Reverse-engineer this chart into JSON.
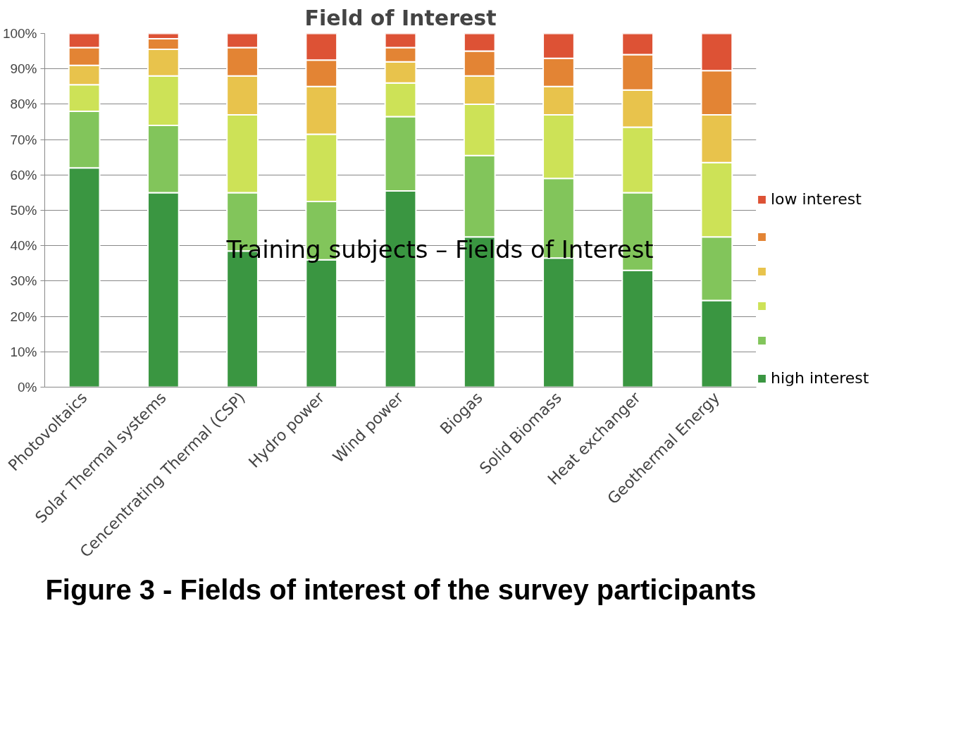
{
  "chart_data": {
    "type": "bar",
    "stacked": true,
    "title": "Field of Interest",
    "categories": [
      "Photovoltaics",
      "Solar Thermal systems",
      "Cencentrating Thermal (CSP)",
      "Hydro power",
      "Wind power",
      "Biogas",
      "Solid Biomass",
      "Heat exchanger",
      "Geothermal Energy"
    ],
    "series": [
      {
        "name": "high interest",
        "color": "#3a9641",
        "values": [
          62,
          55,
          38.5,
          36,
          55.5,
          42.5,
          36.5,
          33,
          24.5
        ]
      },
      {
        "color": "#82c55b",
        "values": [
          16,
          19,
          16.5,
          16.5,
          21,
          23,
          22.5,
          22,
          18
        ]
      },
      {
        "color": "#cde257",
        "values": [
          7.5,
          14,
          22,
          19,
          9.5,
          14.5,
          18,
          18.5,
          21
        ]
      },
      {
        "color": "#e8c34c",
        "values": [
          5.5,
          7.5,
          11,
          13.5,
          6,
          8,
          8,
          10.5,
          13.5
        ]
      },
      {
        "color": "#e38434",
        "values": [
          5,
          3,
          8,
          7.5,
          4,
          7,
          8,
          10,
          12.5
        ]
      },
      {
        "name": "low interest",
        "color": "#dd5235",
        "values": [
          4,
          1.5,
          4,
          7.5,
          4,
          5,
          7,
          6,
          10.5
        ]
      }
    ],
    "ylim": [
      0,
      100
    ],
    "yticks": [
      {
        "value": 0,
        "label": "0%"
      },
      {
        "value": 10,
        "label": "10%"
      },
      {
        "value": 20,
        "label": "20%"
      },
      {
        "value": 30,
        "label": "30%"
      },
      {
        "value": 40,
        "label": "40%"
      },
      {
        "value": 50,
        "label": "50%"
      },
      {
        "value": 60,
        "label": "60%"
      },
      {
        "value": 70,
        "label": "70%"
      },
      {
        "value": 80,
        "label": "80%"
      },
      {
        "value": 90,
        "label": "90%"
      },
      {
        "value": 100,
        "label": "100%"
      }
    ],
    "grid": "y",
    "legend": "right",
    "annotations": [
      "Training subjects – Fields of Interest",
      "Figure 3 - Fields of interest of the survey participants"
    ]
  }
}
